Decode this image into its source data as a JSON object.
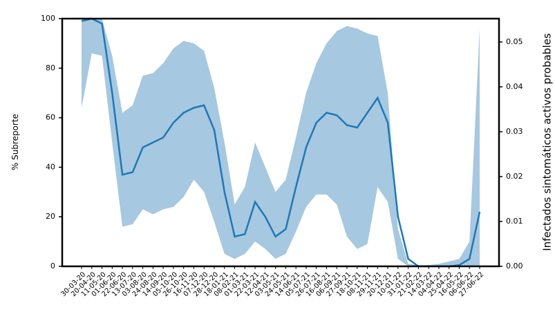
{
  "chart_data": {
    "type": "line-band",
    "y_label": "% Subreporte",
    "y2_label": "Infectados sintomáticos activos probables",
    "categories": [
      "30-03-20",
      "20-04-20",
      "11-05-20",
      "01-06-20",
      "22-06-20",
      "13-07-20",
      "03-08-20",
      "24-08-20",
      "14-09-20",
      "05-10-20",
      "26-10-20",
      "16-11-20",
      "07-12-20",
      "28-12-20",
      "18-01-21",
      "08-02-21",
      "01-03-21",
      "22-03-21",
      "12-04-21",
      "03-05-21",
      "24-05-21",
      "14-06-21",
      "05-07-21",
      "26-07-21",
      "16-08-21",
      "06-09-21",
      "27-09-21",
      "18-10-21",
      "08-11-21",
      "29-11-21",
      "20-12-21",
      "10-01-22",
      "31-01-22",
      "21-02-22",
      "14-03-22",
      "04-04-22",
      "25-04-22",
      "16-05-22",
      "06-06-22",
      "27-06-22"
    ],
    "line": {
      "color": "#1f77b4",
      "values": [
        99,
        100,
        98,
        70,
        37,
        38,
        48,
        50,
        52,
        58,
        62,
        64,
        65,
        55,
        30,
        12,
        13,
        26,
        20,
        12,
        15,
        32,
        48,
        58,
        62,
        61,
        57,
        56,
        62,
        68,
        58,
        20,
        3,
        0,
        0,
        0,
        0,
        0.5,
        3,
        22
      ]
    },
    "band": {
      "color": "#a6c8e0",
      "lower": [
        64,
        86,
        85,
        50,
        16,
        17,
        23,
        21,
        23,
        24,
        28,
        35,
        30,
        18,
        5,
        3,
        5,
        10,
        7,
        3,
        5,
        14,
        24,
        29,
        29,
        25,
        12,
        7,
        9,
        32,
        26,
        3,
        0,
        0,
        0,
        0,
        0,
        0,
        0,
        0
      ],
      "upper": [
        100,
        100,
        100,
        85,
        62,
        65,
        77,
        78,
        82,
        88,
        91,
        90,
        87,
        72,
        50,
        25,
        32,
        50,
        40,
        30,
        35,
        52,
        70,
        82,
        90,
        95,
        97,
        96,
        94,
        93,
        70,
        15,
        1,
        0.5,
        0.5,
        1,
        2,
        3,
        10,
        96
      ]
    },
    "ylim": [
      0,
      100
    ],
    "yticks": [
      0,
      20,
      40,
      60,
      80,
      100
    ],
    "y2lim": [
      0,
      0.0552
    ],
    "y2ticks": [
      {
        "value": 0,
        "label": "0.00"
      },
      {
        "value": 0.01,
        "label": "0.01"
      },
      {
        "value": 0.02,
        "label": "0.02"
      },
      {
        "value": 0.03,
        "label": "0.03"
      },
      {
        "value": 0.04,
        "label": "0.04"
      },
      {
        "value": 0.05,
        "label": "0.05"
      }
    ]
  }
}
